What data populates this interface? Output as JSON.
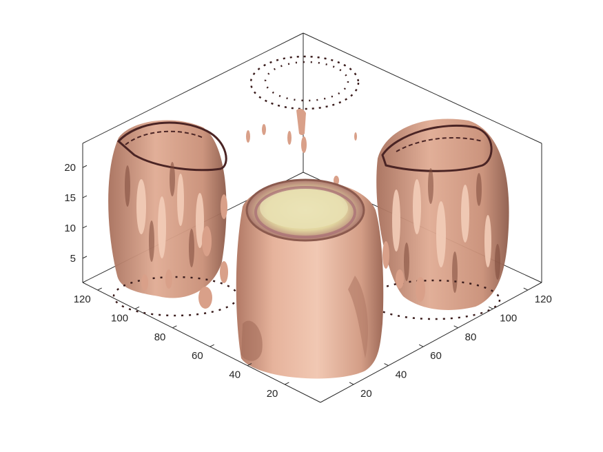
{
  "chart_data": {
    "type": "isosurface-3d",
    "title": "",
    "xlabel": "",
    "ylabel": "",
    "zlabel": "",
    "x_ticks": [
      20,
      40,
      60,
      80,
      100,
      120
    ],
    "y_ticks": [
      20,
      40,
      60,
      80,
      100,
      120
    ],
    "z_ticks": [
      5,
      10,
      15,
      20
    ],
    "xlim": [
      1,
      128
    ],
    "ylim": [
      1,
      128
    ],
    "zlim": [
      1,
      24
    ],
    "grid": false,
    "box": true,
    "view": "oblique 3-D, azimuth ~ -37.5, elevation ~ 30",
    "objects": [
      {
        "name": "head",
        "kind": "isosurface with capped top slice",
        "color": "#e8b8a2"
      },
      {
        "name": "x-projection",
        "kind": "contour slices projected on back-left wall",
        "color": "#d9a089"
      },
      {
        "name": "y-projection",
        "kind": "contour slices projected on back-right wall",
        "color": "#d9a089"
      },
      {
        "name": "z-projection",
        "kind": "contour slices projected on floor and ceiling",
        "color": "#3a1c1c"
      }
    ],
    "colors": {
      "skin": "#e8b8a2",
      "skin_shadow": "#b8826d",
      "cap": "#e6dfae",
      "contour": "#3a1c1c"
    }
  }
}
